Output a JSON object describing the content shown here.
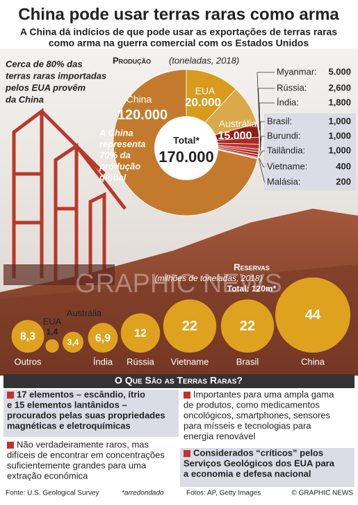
{
  "header": {
    "title": "China pode usar terras raras como arma",
    "subtitle": [
      "A China dá indícios de que pode usar as exportações de terras raras",
      "como arma na guerra comercial com os Estados Unidos"
    ],
    "note": [
      "Cerca de 80% das",
      "terras raras importadas",
      "pelos EUA provêm",
      "da China"
    ]
  },
  "chart_data": [
    {
      "type": "pie",
      "title": "Produção",
      "subtitle": "(toneladas, 2018)",
      "categories": [
        "China",
        "EUA",
        "Austrália",
        "Myanmar:",
        "Rússia:",
        "Índia:",
        "Brasil:",
        "Burundi:",
        "Tailândia:",
        "Vietname:",
        "Malásia:"
      ],
      "values": [
        120000,
        20000,
        15000,
        5000,
        2600,
        1800,
        1000,
        1000,
        1000,
        400,
        200
      ],
      "value_labels": [
        "120.000",
        "20.000",
        "15.000",
        "5.000",
        "2,600",
        "1,800",
        "1,000",
        "1,000",
        "1,000",
        "400",
        "200"
      ],
      "colors": [
        "#c47a2c",
        "#d89b1e",
        "#d9a94c",
        "#8e1f1a",
        "#a82a22",
        "#b8322a",
        "#c03a30",
        "#9a2520",
        "#b33028",
        "#8a1c18",
        "#c4463a"
      ],
      "total_title": "Total*",
      "total": 170000,
      "total_label": "170.000",
      "annotation": [
        "A China",
        "representa",
        "70% da",
        "produção",
        "global"
      ]
    },
    {
      "type": "bubble",
      "title": "Reservas",
      "subtitle": "(milhões de toneladas, 2018)",
      "total_label": "Total: 120m*",
      "categories": [
        "Outros",
        "EUA",
        "Austrália",
        "Índia",
        "Rússia",
        "Vietname",
        "Brasil",
        "China"
      ],
      "values": [
        8.3,
        1.4,
        3.4,
        6.9,
        12,
        22,
        22,
        44
      ],
      "value_labels": [
        "8,3",
        "1,4",
        "3,4",
        "6,9",
        "12",
        "22",
        "22",
        "44"
      ],
      "color": "#dea21f"
    }
  ],
  "info": {
    "heading": "O Que São as Terras Raras?",
    "items": [
      [
        "17 elementos – escândio, ítrio",
        "e 15 elementos lantânidos –",
        "procurados pelas suas propriedades",
        "magnéticas e eletroquímicas"
      ],
      [
        "Não verdadeiramente raros, mas",
        "difíceis de encontrar em concentrações",
        "suficientemente grandes para uma",
        "extração económica"
      ],
      [
        "Importantes para uma ampla gama",
        "de produtos, como medicamentos",
        "oncológicos, smartphones, sensores",
        "para mísseis e tecnologias para",
        "energia renovável"
      ],
      [
        "Considerados “críticos” pelos",
        "Serviços Geológicos dos EUA para",
        "a economia e defesa nacional"
      ]
    ]
  },
  "watermark": "GRAPHIC NEWS",
  "footer": {
    "source": "Fonte: U.S. Geological Survey",
    "note": "*arredondado",
    "photos": "Fotos: AP, Getty Images",
    "credit": "© GRAPHIC NEWS"
  }
}
